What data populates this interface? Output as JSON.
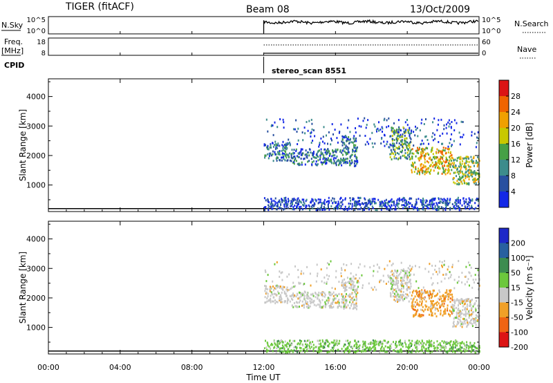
{
  "header": {
    "station": "TIGER (fitACF)",
    "beam": "Beam 08",
    "date": "13/Oct/2009"
  },
  "top_panels": {
    "nsky_label": "N.Sky",
    "nsearch_label": "N.Search",
    "nsky_ticks": [
      "10^5",
      "10^0"
    ],
    "nsearch_ticks": [
      "10^5",
      "10^0"
    ],
    "freq_label_line1": "Freq.",
    "freq_label_line2": "[MHz]",
    "freq_ticks": [
      "18",
      "8"
    ],
    "nave_label": "Nave",
    "nave_ticks": [
      "60",
      "0"
    ],
    "cpid_label": "CPID",
    "cpid_value": "stereo_scan 8551",
    "data_start_hour": 12
  },
  "chart_data": [
    {
      "type": "heatmap",
      "name": "power",
      "ylabel": "Slant Range [km]",
      "ylim": [
        100,
        4600
      ],
      "yticks": [
        "1000",
        "2000",
        "3000",
        "4000"
      ],
      "colorbar_label": "Power [dB]",
      "colorbar_ticks": [
        "4",
        "8",
        "12",
        "16",
        "20",
        "24",
        "28"
      ],
      "colorbar_range": [
        0,
        32
      ],
      "colors": [
        "#1428e6",
        "#2850a0",
        "#3c8c8c",
        "#46a046",
        "#c8c800",
        "#f0a000",
        "#f06400",
        "#dc1414"
      ],
      "regions": [
        {
          "t0": 12.0,
          "t1": 13.5,
          "r0": 1850,
          "r1": 2450,
          "value": 10
        },
        {
          "t0": 13.5,
          "t1": 16.3,
          "r0": 1700,
          "r1": 2250,
          "value": 8
        },
        {
          "t0": 16.3,
          "t1": 17.2,
          "r0": 1650,
          "r1": 2700,
          "value": 10
        },
        {
          "t0": 19.0,
          "t1": 20.2,
          "r0": 1900,
          "r1": 3000,
          "value": 12
        },
        {
          "t0": 20.2,
          "t1": 22.5,
          "r0": 1400,
          "r1": 2300,
          "value": 20
        },
        {
          "t0": 22.5,
          "t1": 24.0,
          "r0": 1050,
          "r1": 2000,
          "value": 18
        },
        {
          "t0": 12.0,
          "t1": 24.0,
          "r0": 180,
          "r1": 600,
          "value": 6
        }
      ]
    },
    {
      "type": "heatmap",
      "name": "velocity",
      "ylabel": "Slant Range [km]",
      "ylim": [
        100,
        4600
      ],
      "yticks": [
        "1000",
        "2000",
        "3000",
        "4000"
      ],
      "colorbar_label": "Velocity [m s⁻¹]",
      "colorbar_ticks": [
        "200",
        "100",
        "50",
        "15",
        "-15",
        "-50",
        "-100",
        "-200"
      ],
      "colors": [
        "#1e28c8",
        "#2860a0",
        "#3c8c50",
        "#6cc83c",
        "#c8c8c8",
        "#f0a028",
        "#f06414",
        "#dc1414"
      ],
      "regions": [
        {
          "t0": 12.0,
          "t1": 13.5,
          "r0": 1850,
          "r1": 2450,
          "value": 0
        },
        {
          "t0": 13.5,
          "t1": 16.3,
          "r0": 1700,
          "r1": 2250,
          "value": 0
        },
        {
          "t0": 16.3,
          "t1": 17.2,
          "r0": 1650,
          "r1": 2700,
          "value": 0
        },
        {
          "t0": 19.0,
          "t1": 20.2,
          "r0": 1900,
          "r1": 3000,
          "value": 0
        },
        {
          "t0": 20.2,
          "t1": 22.5,
          "r0": 1400,
          "r1": 2300,
          "value": -40
        },
        {
          "t0": 22.5,
          "t1": 24.0,
          "r0": 1050,
          "r1": 2000,
          "value": -10
        },
        {
          "t0": 12.0,
          "t1": 24.0,
          "r0": 180,
          "r1": 600,
          "value": 30
        }
      ]
    }
  ],
  "x_axis": {
    "ticks": [
      "00:00",
      "04:00",
      "08:00",
      "12:00",
      "16:00",
      "20:00",
      "00:00"
    ],
    "label": "Time UT",
    "range_hours": [
      0,
      24
    ]
  }
}
